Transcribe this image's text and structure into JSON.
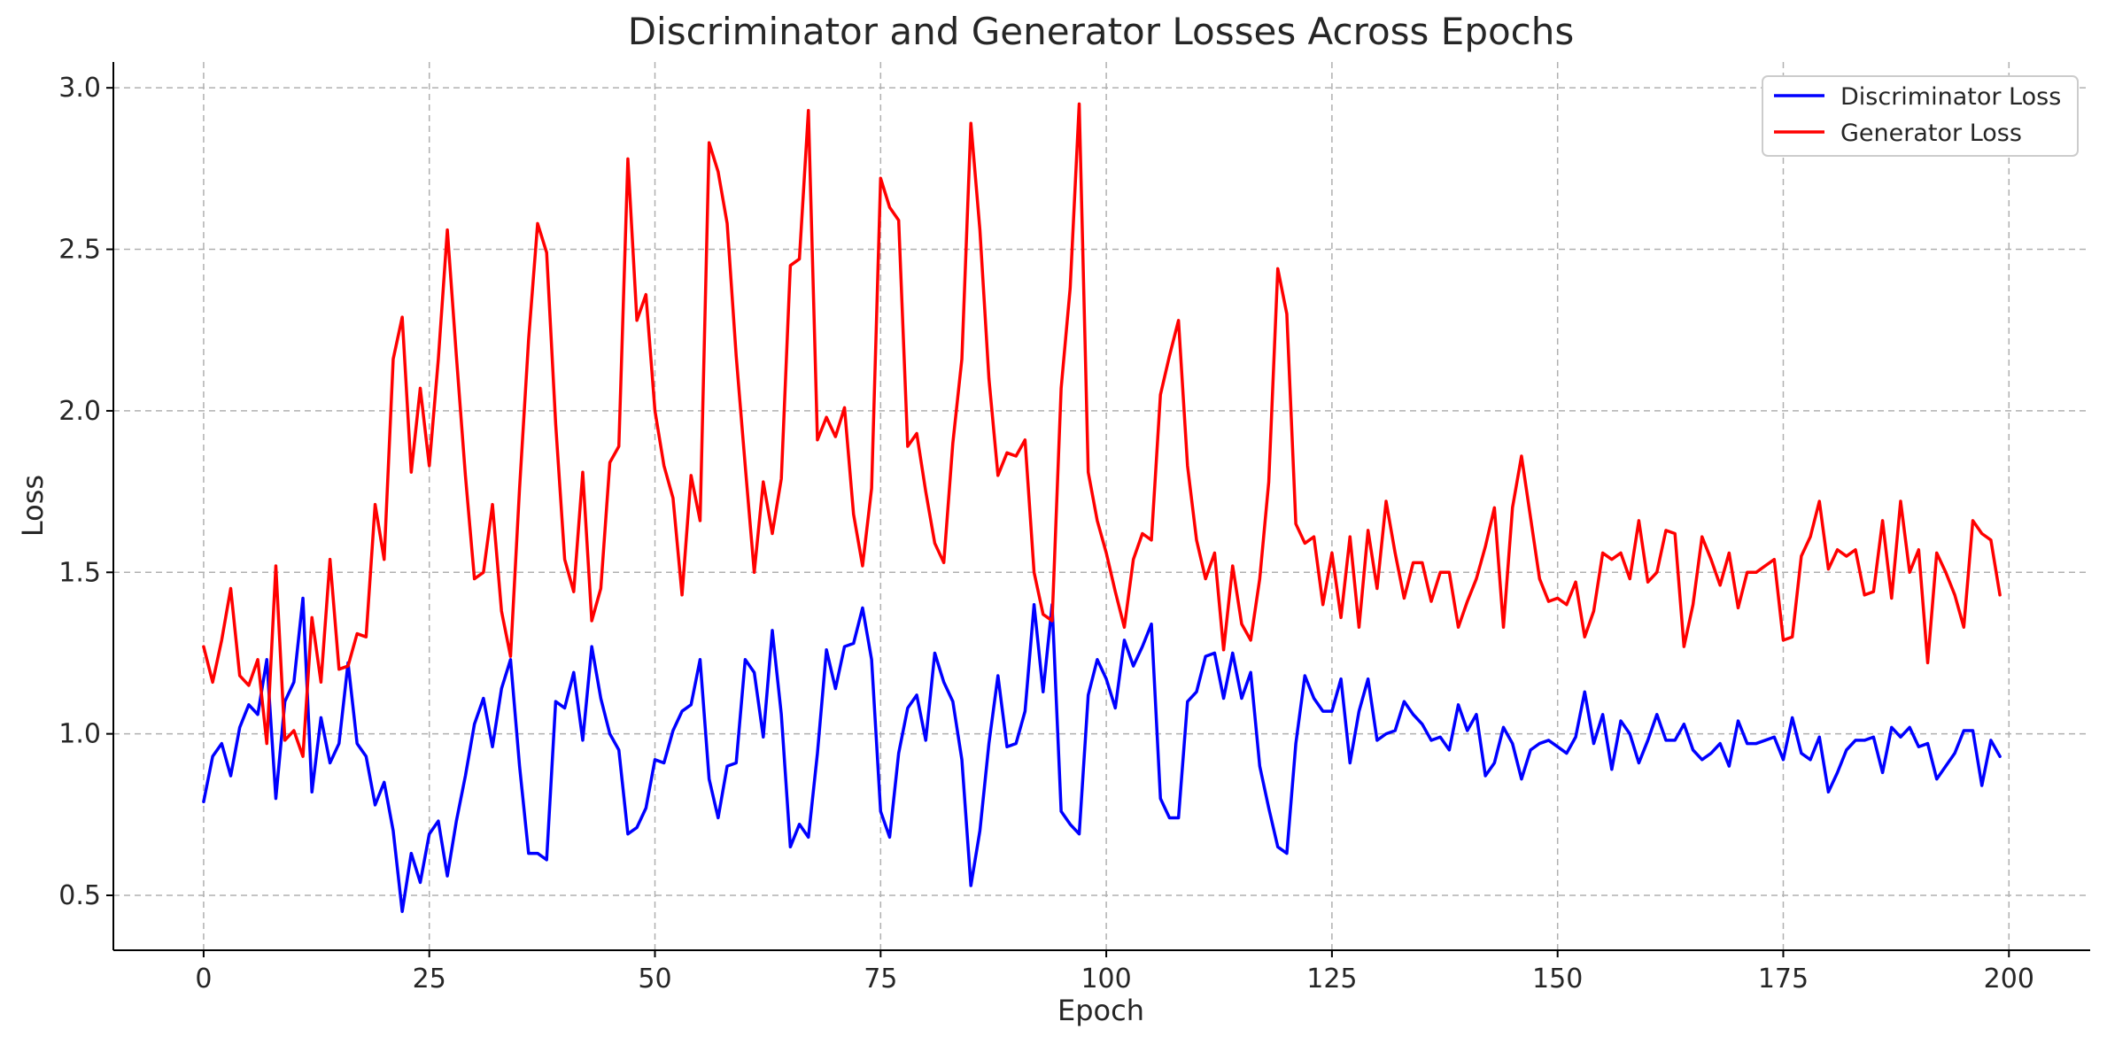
{
  "chart_data": {
    "type": "line",
    "title": "Discriminator and Generator Losses Across Epochs",
    "xlabel": "Epoch",
    "ylabel": "Loss",
    "xlim": [
      -10,
      209
    ],
    "ylim": [
      0.33,
      3.08
    ],
    "xticks": [
      0,
      25,
      50,
      75,
      100,
      125,
      150,
      175,
      200
    ],
    "yticks": [
      0.5,
      1.0,
      1.5,
      2.0,
      2.5,
      3.0
    ],
    "ytick_labels": [
      "0.5",
      "1.0",
      "1.5",
      "2.0",
      "2.5",
      "3.0"
    ],
    "grid": true,
    "legend_position": "top-right",
    "x": [
      0,
      1,
      2,
      3,
      4,
      5,
      6,
      7,
      8,
      9,
      10,
      11,
      12,
      13,
      14,
      15,
      16,
      17,
      18,
      19,
      20,
      21,
      22,
      23,
      24,
      25,
      26,
      27,
      28,
      29,
      30,
      31,
      32,
      33,
      34,
      35,
      36,
      37,
      38,
      39,
      40,
      41,
      42,
      43,
      44,
      45,
      46,
      47,
      48,
      49,
      50,
      51,
      52,
      53,
      54,
      55,
      56,
      57,
      58,
      59,
      60,
      61,
      62,
      63,
      64,
      65,
      66,
      67,
      68,
      69,
      70,
      71,
      72,
      73,
      74,
      75,
      76,
      77,
      78,
      79,
      80,
      81,
      82,
      83,
      84,
      85,
      86,
      87,
      88,
      89,
      90,
      91,
      92,
      93,
      94,
      95,
      96,
      97,
      98,
      99,
      100,
      101,
      102,
      103,
      104,
      105,
      106,
      107,
      108,
      109,
      110,
      111,
      112,
      113,
      114,
      115,
      116,
      117,
      118,
      119,
      120,
      121,
      122,
      123,
      124,
      125,
      126,
      127,
      128,
      129,
      130,
      131,
      132,
      133,
      134,
      135,
      136,
      137,
      138,
      139,
      140,
      141,
      142,
      143,
      144,
      145,
      146,
      147,
      148,
      149,
      150,
      151,
      152,
      153,
      154,
      155,
      156,
      157,
      158,
      159,
      160,
      161,
      162,
      163,
      164,
      165,
      166,
      167,
      168,
      169,
      170,
      171,
      172,
      173,
      174,
      175,
      176,
      177,
      178,
      179,
      180,
      181,
      182,
      183,
      184,
      185,
      186,
      187,
      188,
      189,
      190,
      191,
      192,
      193,
      194,
      195,
      196,
      197,
      198,
      199
    ],
    "series": [
      {
        "name": "Discriminator Loss",
        "color": "#0000ff",
        "values": [
          0.79,
          0.93,
          0.97,
          0.87,
          1.02,
          1.09,
          1.06,
          1.23,
          0.8,
          1.1,
          1.16,
          1.42,
          0.82,
          1.05,
          0.91,
          0.97,
          1.22,
          0.97,
          0.93,
          0.78,
          0.85,
          0.7,
          0.45,
          0.63,
          0.54,
          0.69,
          0.73,
          0.56,
          0.73,
          0.87,
          1.03,
          1.11,
          0.96,
          1.14,
          1.23,
          0.9,
          0.63,
          0.63,
          0.61,
          1.1,
          1.08,
          1.19,
          0.98,
          1.27,
          1.11,
          1.0,
          0.95,
          0.69,
          0.71,
          0.77,
          0.92,
          0.91,
          1.01,
          1.07,
          1.09,
          1.23,
          0.86,
          0.74,
          0.9,
          0.91,
          1.23,
          1.19,
          0.99,
          1.32,
          1.06,
          0.65,
          0.72,
          0.68,
          0.94,
          1.26,
          1.14,
          1.27,
          1.28,
          1.39,
          1.23,
          0.76,
          0.68,
          0.94,
          1.08,
          1.12,
          0.98,
          1.25,
          1.16,
          1.1,
          0.92,
          0.53,
          0.7,
          0.97,
          1.18,
          0.96,
          0.97,
          1.07,
          1.4,
          1.13,
          1.4,
          0.76,
          0.72,
          0.69,
          1.12,
          1.23,
          1.17,
          1.08,
          1.29,
          1.21,
          1.27,
          1.34,
          0.8,
          0.74,
          0.74,
          1.1,
          1.13,
          1.24,
          1.25,
          1.11,
          1.25,
          1.11,
          1.19,
          0.9,
          0.77,
          0.65,
          0.63,
          0.97,
          1.18,
          1.11,
          1.07,
          1.07,
          1.17,
          0.91,
          1.07,
          1.17,
          0.98,
          1.0,
          1.01,
          1.1,
          1.06,
          1.03,
          0.98,
          0.99,
          0.95,
          1.09,
          1.01,
          1.06,
          0.87,
          0.91,
          1.02,
          0.97,
          0.86,
          0.95,
          0.97,
          0.98,
          0.96,
          0.94,
          0.99,
          1.13,
          0.97,
          1.06,
          0.89,
          1.04,
          1.0,
          0.91,
          0.98,
          1.06,
          0.98,
          0.98,
          1.03,
          0.95,
          0.92,
          0.94,
          0.97,
          0.9,
          1.04,
          0.97,
          0.97,
          0.98,
          0.99,
          0.92,
          1.05,
          0.94,
          0.92,
          0.99,
          0.82,
          0.88,
          0.95,
          0.98,
          0.98,
          0.99,
          0.88,
          1.02,
          0.99,
          1.02,
          0.96,
          0.97,
          0.86,
          0.9,
          0.94,
          1.01,
          1.01,
          0.84,
          0.98,
          0.93
        ]
      },
      {
        "name": "Generator Loss",
        "color": "#ff0000",
        "values": [
          1.27,
          1.16,
          1.29,
          1.45,
          1.18,
          1.15,
          1.23,
          0.97,
          1.52,
          0.98,
          1.01,
          0.93,
          1.36,
          1.16,
          1.54,
          1.2,
          1.21,
          1.31,
          1.3,
          1.71,
          1.54,
          2.16,
          2.29,
          1.81,
          2.07,
          1.83,
          2.16,
          2.56,
          2.17,
          1.8,
          1.48,
          1.5,
          1.71,
          1.38,
          1.24,
          1.76,
          2.22,
          2.58,
          2.49,
          1.96,
          1.54,
          1.44,
          1.81,
          1.35,
          1.45,
          1.84,
          1.89,
          2.78,
          2.28,
          2.36,
          2.0,
          1.83,
          1.73,
          1.43,
          1.8,
          1.66,
          2.83,
          2.74,
          2.58,
          2.17,
          1.83,
          1.5,
          1.78,
          1.62,
          1.79,
          2.45,
          2.47,
          2.93,
          1.91,
          1.98,
          1.92,
          2.01,
          1.68,
          1.52,
          1.76,
          2.72,
          2.63,
          2.59,
          1.89,
          1.93,
          1.75,
          1.59,
          1.53,
          1.9,
          2.16,
          2.89,
          2.56,
          2.1,
          1.8,
          1.87,
          1.86,
          1.91,
          1.5,
          1.37,
          1.35,
          2.07,
          2.38,
          2.95,
          1.81,
          1.66,
          1.56,
          1.44,
          1.33,
          1.54,
          1.62,
          1.6,
          2.05,
          2.17,
          2.28,
          1.83,
          1.6,
          1.48,
          1.56,
          1.26,
          1.52,
          1.34,
          1.29,
          1.48,
          1.78,
          2.44,
          2.3,
          1.65,
          1.59,
          1.61,
          1.4,
          1.56,
          1.36,
          1.61,
          1.33,
          1.63,
          1.45,
          1.72,
          1.56,
          1.42,
          1.53,
          1.53,
          1.41,
          1.5,
          1.5,
          1.33,
          1.41,
          1.48,
          1.58,
          1.7,
          1.33,
          1.7,
          1.86,
          1.67,
          1.48,
          1.41,
          1.42,
          1.4,
          1.47,
          1.3,
          1.38,
          1.56,
          1.54,
          1.56,
          1.48,
          1.66,
          1.47,
          1.5,
          1.63,
          1.62,
          1.27,
          1.4,
          1.61,
          1.54,
          1.46,
          1.56,
          1.39,
          1.5,
          1.5,
          1.52,
          1.54,
          1.29,
          1.3,
          1.55,
          1.61,
          1.72,
          1.51,
          1.57,
          1.55,
          1.57,
          1.43,
          1.44,
          1.66,
          1.42,
          1.72,
          1.5,
          1.57,
          1.22,
          1.56,
          1.5,
          1.43,
          1.33,
          1.66,
          1.62,
          1.6,
          1.43
        ]
      }
    ]
  }
}
